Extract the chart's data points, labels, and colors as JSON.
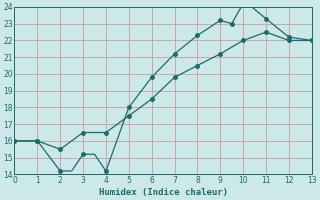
{
  "title": "",
  "xlabel": "Humidex (Indice chaleur)",
  "ylabel": "",
  "background_color": "#cce8e8",
  "grid_color": "#c8a8a8",
  "line_color": "#1a6b6b",
  "xlim": [
    0,
    13
  ],
  "ylim": [
    14,
    24
  ],
  "xticks": [
    0,
    1,
    2,
    3,
    4,
    5,
    6,
    7,
    8,
    9,
    10,
    11,
    12,
    13
  ],
  "yticks": [
    14,
    15,
    16,
    17,
    18,
    19,
    20,
    21,
    22,
    23,
    24
  ],
  "line1_x": [
    0,
    1,
    2,
    2.5,
    3,
    3.5,
    4,
    5,
    6,
    7,
    8,
    9,
    9.5,
    10,
    10.2,
    11,
    12,
    13
  ],
  "line1_y": [
    16,
    16,
    14.2,
    14.2,
    15.2,
    15.2,
    14.2,
    18.0,
    19.8,
    21.2,
    22.3,
    23.2,
    23.0,
    24.2,
    24.2,
    23.3,
    22.2,
    22.0
  ],
  "line2_x": [
    0,
    1,
    2,
    3,
    4,
    5,
    6,
    7,
    8,
    9,
    10,
    11,
    12,
    13
  ],
  "line2_y": [
    16.0,
    16.0,
    15.5,
    16.5,
    16.5,
    17.5,
    18.5,
    19.8,
    20.5,
    21.2,
    22.0,
    22.5,
    22.0,
    22.0
  ],
  "marker1_x": [
    0,
    1,
    2,
    3,
    4,
    5,
    6,
    7,
    8,
    9,
    9.5,
    10,
    11,
    12,
    13
  ],
  "marker1_y": [
    16,
    16,
    14.2,
    15.2,
    14.2,
    18.0,
    19.8,
    21.2,
    22.3,
    23.2,
    23.0,
    24.2,
    23.3,
    22.2,
    22.0
  ],
  "marker2_x": [
    0,
    1,
    2,
    3,
    4,
    5,
    6,
    7,
    8,
    9,
    10,
    11,
    12,
    13
  ],
  "marker2_y": [
    16.0,
    16.0,
    15.5,
    16.5,
    16.5,
    17.5,
    18.5,
    19.8,
    20.5,
    21.2,
    22.0,
    22.5,
    22.0,
    22.0
  ],
  "marker_size": 2.5,
  "linewidth": 0.9
}
